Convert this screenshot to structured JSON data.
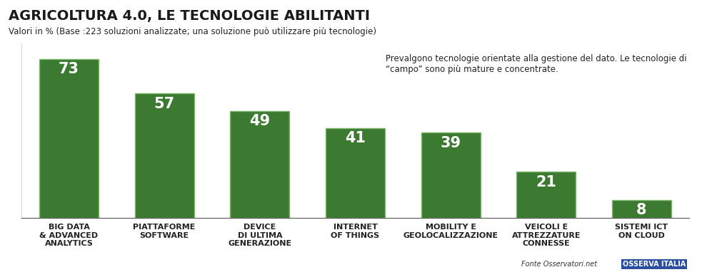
{
  "chart_data": {
    "type": "bar",
    "title": "AGRICOLTURA 4.0, LE TECNOLOGIE ABILITANTI",
    "subtitle": "Valori in % (Base :223 soluzioni analizzate; una soluzione può utilizzare più tecnologie)",
    "annotation": "Prevalgono tecnologie orientate alla gestione del dato. Le tecnologie di “campo” sono più mature e concentrate.",
    "source": "Fonte Osservatori.net",
    "logo": "OSSERVA ITALIA",
    "categories": [
      "BIG DATA\n& ADVANCED\nANALYTICS",
      "PIATTAFORME\nSOFTWARE",
      "DEVICE\nDI ULTIMA\nGENERAZIONE",
      "INTERNET\nOF THINGS",
      "MOBILITY E\nGEOLOCALIZZAZIONE",
      "VEICOLI E\nATTREZZATURE\nCONNESSE",
      "SISTEMI ICT\nON CLOUD"
    ],
    "values": [
      73,
      57,
      49,
      41,
      39,
      21,
      8
    ],
    "color": "#3b7a30",
    "ylim": [
      0,
      80
    ],
    "yticks": [],
    "grid": false,
    "data_labels": true,
    "tick_labels": "x"
  }
}
